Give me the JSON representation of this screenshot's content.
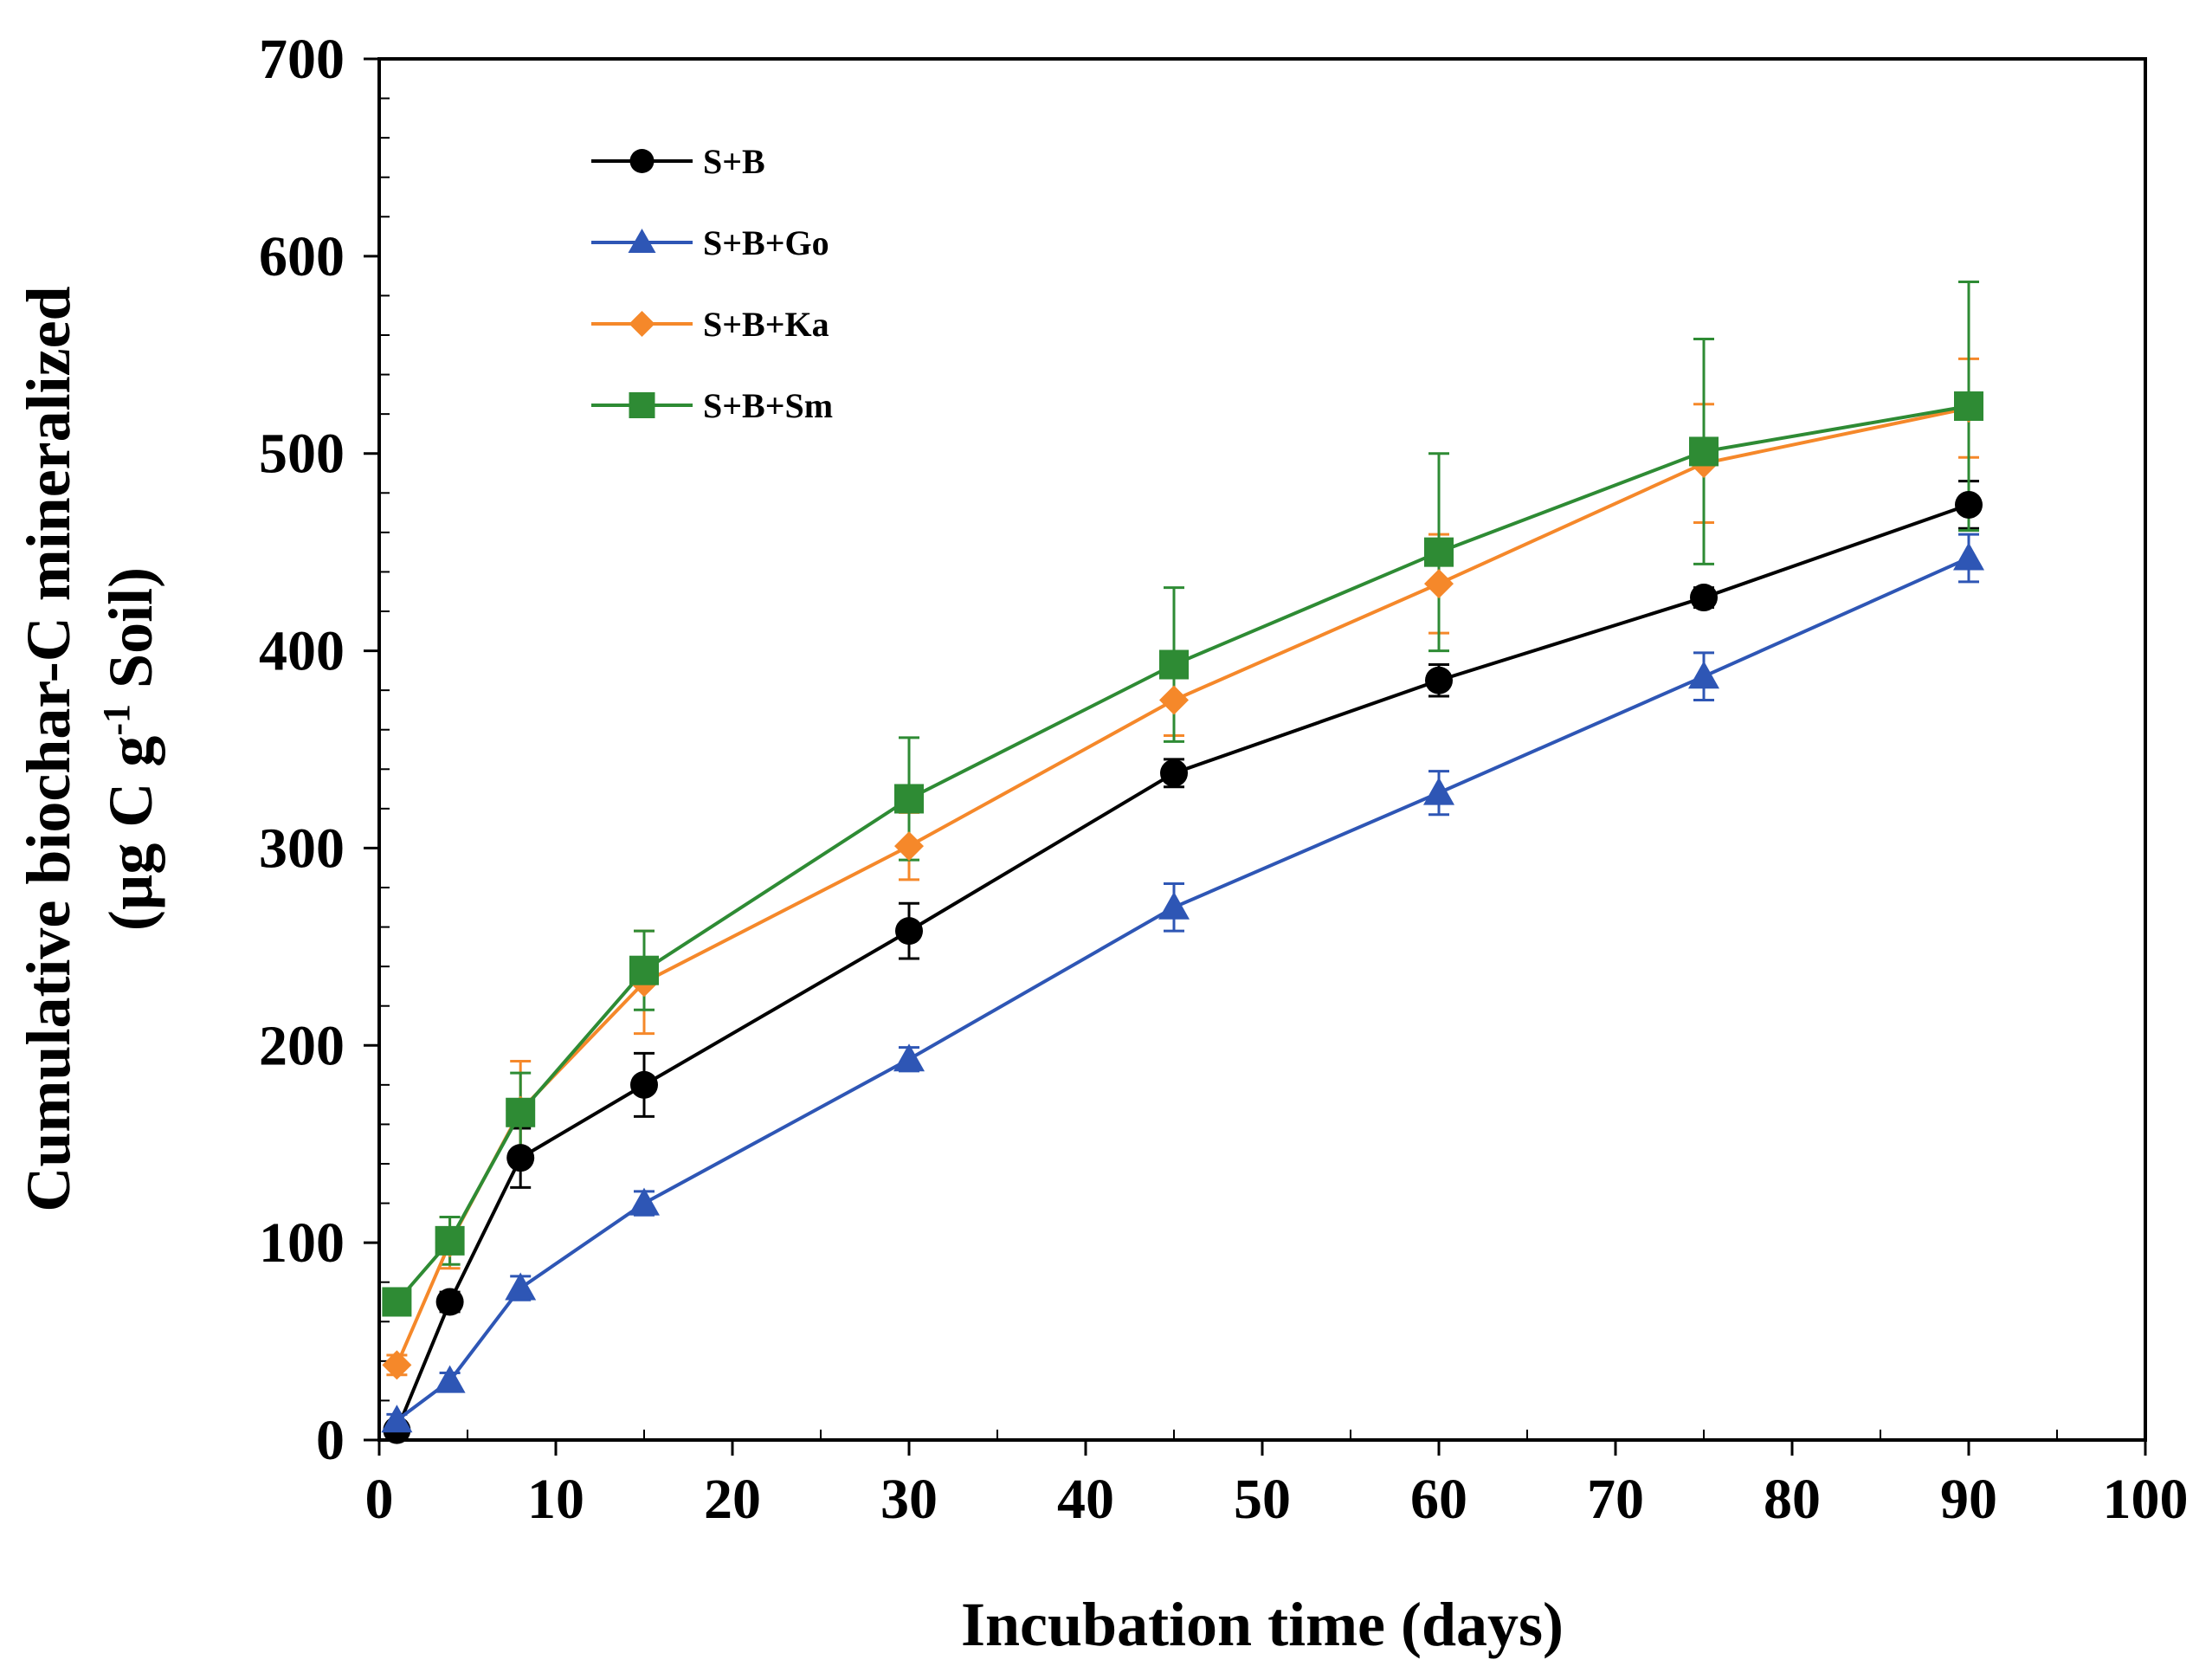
{
  "chart_data": {
    "type": "line",
    "title": "",
    "xlabel": "Incubation time (days)",
    "ylabel": {
      "line1": "Cumulative biochar-C mineralized",
      "line2_prefix": "(µg C g",
      "line2_superscript": "-1",
      "line2_suffix": " Soil)"
    },
    "xlim": [
      0,
      100
    ],
    "ylim": [
      0,
      700
    ],
    "xticks": [
      0,
      10,
      20,
      30,
      40,
      50,
      60,
      70,
      80,
      90,
      100
    ],
    "yticks": [
      0,
      100,
      200,
      300,
      400,
      500,
      600,
      700
    ],
    "grid": false,
    "legend_position": "top-left",
    "x": [
      1,
      4,
      8,
      15,
      30,
      45,
      60,
      75,
      90
    ],
    "series": [
      {
        "name": "S+B",
        "color": "#000000",
        "marker": "circle",
        "values": [
          5,
          70,
          143,
          180,
          258,
          338,
          385,
          427,
          474
        ],
        "errors": [
          3,
          5,
          15,
          16,
          14,
          7,
          8,
          5,
          12
        ]
      },
      {
        "name": "S+B+Go",
        "color": "#2e56b5",
        "marker": "triangle",
        "values": [
          10,
          30,
          77,
          120,
          193,
          270,
          328,
          387,
          447
        ],
        "errors": [
          3,
          4,
          6,
          6,
          6,
          12,
          11,
          12,
          12
        ]
      },
      {
        "name": "S+B+Ka",
        "color": "#f5882a",
        "marker": "diamond",
        "values": [
          38,
          100,
          167,
          232,
          301,
          375,
          434,
          495,
          523
        ],
        "errors": [
          5,
          13,
          25,
          26,
          17,
          18,
          25,
          30,
          25
        ]
      },
      {
        "name": "S+B+Sm",
        "color": "#2e8b34",
        "marker": "square",
        "values": [
          70,
          101,
          166,
          238,
          325,
          393,
          450,
          501,
          524
        ],
        "errors": [
          3,
          12,
          20,
          20,
          31,
          39,
          50,
          57,
          63
        ]
      }
    ]
  }
}
